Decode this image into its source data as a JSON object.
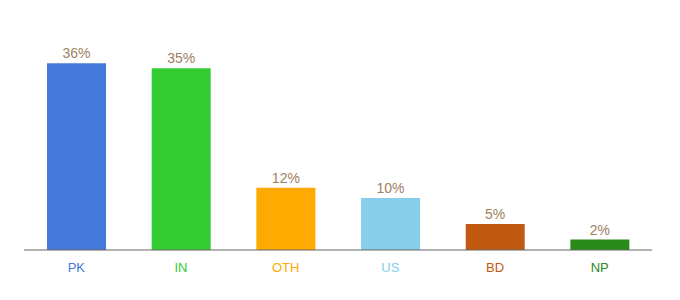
{
  "chart_data": {
    "type": "bar",
    "categories": [
      "PK",
      "IN",
      "OTH",
      "US",
      "BD",
      "NP"
    ],
    "values": [
      36,
      35,
      12,
      10,
      5,
      2
    ],
    "value_labels": [
      "36%",
      "35%",
      "12%",
      "10%",
      "5%",
      "2%"
    ],
    "colors": [
      "#4479d9",
      "#33cc33",
      "#ffaa00",
      "#87ceeb",
      "#c05a10",
      "#2a8a1a"
    ],
    "ylim": [
      0,
      42
    ],
    "data_labels": true,
    "tick_labels": "x",
    "grid": false
  }
}
